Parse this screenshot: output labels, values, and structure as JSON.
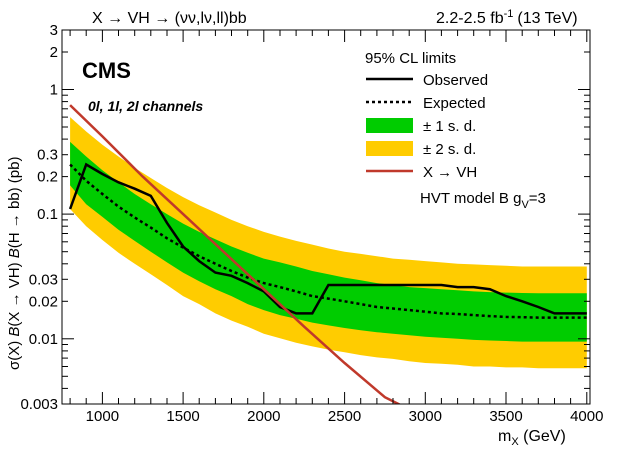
{
  "header": {
    "process": "X → VH → (νν,lν,ll)bb",
    "lumi_value": "2.2-2.5 fb",
    "lumi_exp": "-1",
    "energy": "(13 TeV)"
  },
  "labels": {
    "cms": "CMS",
    "channels": "0l, 1l, 2l channels",
    "ylabel_a": "σ(X) ",
    "ylabel_b": "B",
    "ylabel_c": "(X → VH) ",
    "ylabel_d": "B",
    "ylabel_e": "(H → bb) (pb)",
    "xlabel_main": "m",
    "xlabel_sub": "X",
    "xlabel_unit": " (GeV)"
  },
  "legend": {
    "header": "95% CL limits",
    "observed": "Observed",
    "expected": "Expected",
    "band1": "± 1 s. d.",
    "band2": "± 2 s. d.",
    "signal": "X → VH",
    "model_main": "HVT model B g",
    "model_sub": "V",
    "model_tail": "=3"
  },
  "colors": {
    "band1": "#00cc00",
    "band2": "#ffcc00",
    "observed": "#000000",
    "expected": "#000000",
    "signal": "#c0392b"
  },
  "chart_data": {
    "type": "line",
    "xlim": [
      750,
      4020
    ],
    "ylim": [
      0.003,
      3
    ],
    "yscale": "log",
    "x_ticks": [
      1000,
      1500,
      2000,
      2500,
      3000,
      3500,
      4000
    ],
    "x_tick_labels": [
      "1000",
      "1500",
      "2000",
      "2500",
      "3000",
      "3500",
      "4000"
    ],
    "y_ticks": [
      0.003,
      0.01,
      0.02,
      0.03,
      0.1,
      0.2,
      0.3,
      1,
      2,
      3
    ],
    "y_tick_labels": [
      "0.003",
      "0.01",
      "0.02",
      "0.03",
      "0.1",
      "0.2",
      "0.3",
      "1",
      "2",
      "3"
    ],
    "grid": false,
    "legend_position": "top-right",
    "series": [
      {
        "name": "Observed",
        "style": "solid",
        "x": [
          800,
          900,
          1000,
          1100,
          1200,
          1300,
          1400,
          1500,
          1600,
          1700,
          1800,
          1900,
          2000,
          2100,
          2200,
          2300,
          2400,
          2500,
          2600,
          2700,
          2800,
          2900,
          3000,
          3100,
          3200,
          3300,
          3400,
          3500,
          3600,
          3700,
          3800,
          3900,
          4000
        ],
        "y": [
          0.11,
          0.25,
          0.21,
          0.18,
          0.16,
          0.14,
          0.085,
          0.055,
          0.042,
          0.034,
          0.032,
          0.028,
          0.024,
          0.018,
          0.016,
          0.016,
          0.027,
          0.027,
          0.027,
          0.027,
          0.027,
          0.027,
          0.027,
          0.027,
          0.026,
          0.026,
          0.025,
          0.022,
          0.02,
          0.018,
          0.016,
          0.016,
          0.016
        ]
      },
      {
        "name": "Expected",
        "style": "dashed",
        "x": [
          800,
          900,
          1000,
          1100,
          1200,
          1300,
          1400,
          1500,
          1600,
          1700,
          1800,
          1900,
          2000,
          2100,
          2200,
          2300,
          2400,
          2500,
          2600,
          2700,
          2800,
          2900,
          3000,
          3100,
          3200,
          3300,
          3400,
          3500,
          3600,
          3700,
          3800,
          3900,
          4000
        ],
        "y": [
          0.25,
          0.185,
          0.145,
          0.115,
          0.094,
          0.078,
          0.064,
          0.054,
          0.046,
          0.04,
          0.035,
          0.031,
          0.028,
          0.026,
          0.024,
          0.022,
          0.021,
          0.02,
          0.019,
          0.018,
          0.0175,
          0.017,
          0.0165,
          0.016,
          0.0158,
          0.0155,
          0.0152,
          0.015,
          0.0149,
          0.0148,
          0.0148,
          0.0148,
          0.0148
        ]
      },
      {
        "name": "± 1 s. d.",
        "style": "band",
        "x": [
          800,
          900,
          1000,
          1100,
          1200,
          1300,
          1400,
          1500,
          1600,
          1700,
          1800,
          1900,
          2000,
          2100,
          2200,
          2300,
          2400,
          2500,
          2600,
          2700,
          2800,
          2900,
          3000,
          3100,
          3200,
          3300,
          3400,
          3500,
          3600,
          3700,
          3800,
          3900,
          4000
        ],
        "low": [
          0.17,
          0.12,
          0.095,
          0.075,
          0.061,
          0.05,
          0.041,
          0.034,
          0.029,
          0.025,
          0.022,
          0.019,
          0.017,
          0.0155,
          0.0145,
          0.0135,
          0.0128,
          0.0122,
          0.0117,
          0.0113,
          0.011,
          0.0107,
          0.0104,
          0.0102,
          0.01,
          0.0098,
          0.0097,
          0.0096,
          0.0095,
          0.0095,
          0.0095,
          0.0095,
          0.0095
        ],
        "high": [
          0.38,
          0.29,
          0.225,
          0.18,
          0.145,
          0.12,
          0.1,
          0.084,
          0.072,
          0.063,
          0.055,
          0.049,
          0.044,
          0.041,
          0.038,
          0.035,
          0.033,
          0.031,
          0.0295,
          0.028,
          0.027,
          0.026,
          0.0255,
          0.025,
          0.0245,
          0.024,
          0.0237,
          0.0235,
          0.0233,
          0.0232,
          0.0232,
          0.0232,
          0.0232
        ]
      },
      {
        "name": "± 2 s. d.",
        "style": "band",
        "x": [
          800,
          900,
          1000,
          1100,
          1200,
          1300,
          1400,
          1500,
          1600,
          1700,
          1800,
          1900,
          2000,
          2100,
          2200,
          2300,
          2400,
          2500,
          2600,
          2700,
          2800,
          2900,
          3000,
          3100,
          3200,
          3300,
          3400,
          3500,
          3600,
          3700,
          3800,
          3900,
          4000
        ],
        "low": [
          0.11,
          0.08,
          0.062,
          0.049,
          0.04,
          0.033,
          0.027,
          0.022,
          0.019,
          0.016,
          0.014,
          0.0125,
          0.011,
          0.0101,
          0.0093,
          0.0087,
          0.0082,
          0.0078,
          0.0074,
          0.0071,
          0.0069,
          0.0066,
          0.0064,
          0.0063,
          0.0062,
          0.006,
          0.006,
          0.0059,
          0.0059,
          0.0058,
          0.0058,
          0.0058,
          0.0058
        ],
        "high": [
          0.6,
          0.46,
          0.36,
          0.29,
          0.235,
          0.195,
          0.162,
          0.137,
          0.118,
          0.103,
          0.09,
          0.08,
          0.072,
          0.066,
          0.061,
          0.057,
          0.053,
          0.05,
          0.048,
          0.046,
          0.044,
          0.043,
          0.042,
          0.041,
          0.04,
          0.0395,
          0.039,
          0.0385,
          0.038,
          0.038,
          0.038,
          0.038,
          0.038
        ]
      },
      {
        "name": "X → VH",
        "style": "solid",
        "x": [
          800,
          1000,
          1250,
          1500,
          1750,
          2000,
          2250,
          2500,
          2750,
          2880
        ],
        "y": [
          0.75,
          0.42,
          0.2,
          0.1,
          0.05,
          0.025,
          0.0125,
          0.0064,
          0.0034,
          0.0028
        ]
      }
    ]
  }
}
